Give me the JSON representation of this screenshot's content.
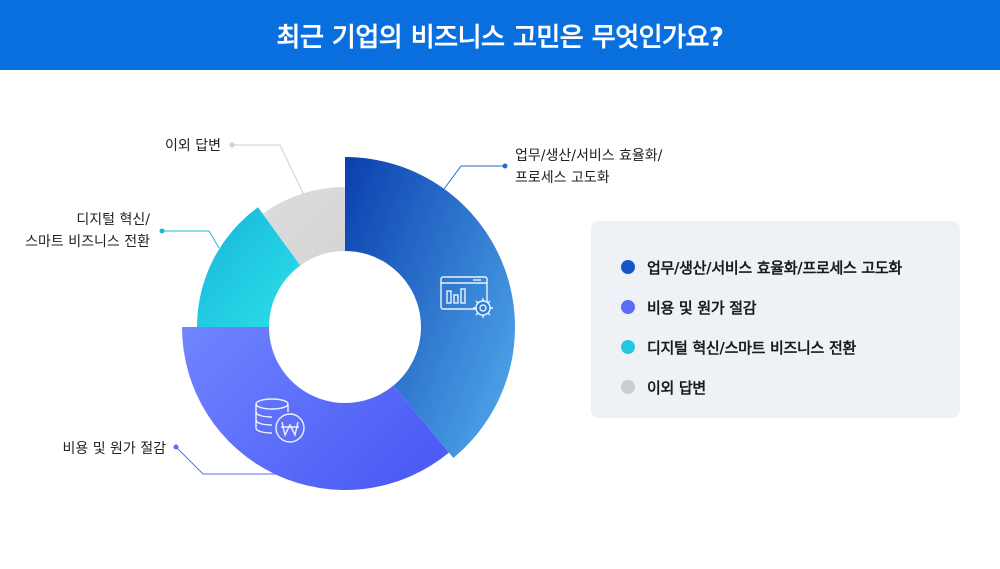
{
  "header": {
    "title": "최근 기업의 비즈니스 고민은 무엇인가요?"
  },
  "chart_data": {
    "type": "donut",
    "title": "최근 기업의 비즈니스 고민은 무엇인가요?",
    "categories": [
      "업무/생산/서비스 효율화/프로세스 고도화",
      "비용 및 원가 절감",
      "디지털 혁신/스마트 비즈니스 전환",
      "이외 답변"
    ],
    "values": [
      39,
      36,
      15,
      10
    ],
    "colors": [
      "#1556c8",
      "#5b6cf6",
      "#22c8e2",
      "#dcdcdc"
    ],
    "legend_position": "right",
    "callouts": [
      {
        "lines": [
          "업무/생산/서비스 효율화/",
          "프로세스 고도화"
        ],
        "color": "#1f6fc9"
      },
      {
        "lines": [
          "비용 및 원가 절감"
        ],
        "color": "#5b6cf6"
      },
      {
        "lines": [
          "디지털 혁신/",
          "스마트 비즈니스 전환"
        ],
        "color": "#19b8d4"
      },
      {
        "lines": [
          "이외 답변"
        ],
        "color": "#cfcfcf"
      }
    ],
    "icons": [
      "dashboard-gear-icon",
      "coins-won-icon"
    ]
  },
  "legend": {
    "items": [
      {
        "label": "업무/생산/서비스 효율화/프로세스 고도화",
        "color": "#1556c8"
      },
      {
        "label": "비용 및 원가 절감",
        "color": "#5b6cf6"
      },
      {
        "label": "디지털 혁신/스마트 비즈니스 전환",
        "color": "#22c8e2"
      },
      {
        "label": "이외 답변",
        "color": "#cccccc"
      }
    ]
  }
}
